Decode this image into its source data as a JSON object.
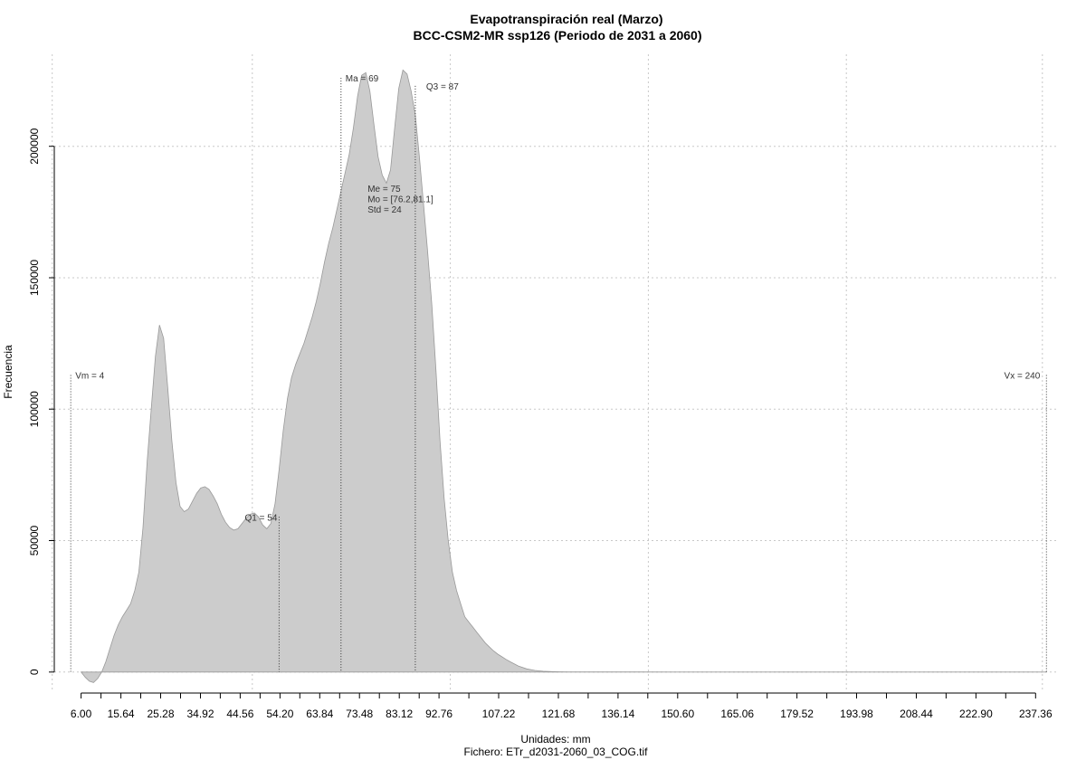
{
  "chart_data": {
    "type": "area",
    "title": "Evapotranspiración real (Marzo)",
    "subtitle": "BCC-CSM2-MR ssp126 (Periodo de 2031 a 2060)",
    "xlabel": "Unidades: mm",
    "ylabel": "Frecuencia",
    "caption": "Fichero: ETr_d2031-2060_03_COG.tif",
    "xlim": [
      -0.5,
      243
    ],
    "ylim": [
      -8000,
      235000
    ],
    "grid": true,
    "fill_color": "#cccccc",
    "line_color": "#999999",
    "x_ticks": [
      {
        "value": 6.0,
        "label": "6.00"
      },
      {
        "value": 15.64,
        "label": "15.64"
      },
      {
        "value": 25.28,
        "label": "25.28"
      },
      {
        "value": 34.92,
        "label": "34.92"
      },
      {
        "value": 44.56,
        "label": "44.56"
      },
      {
        "value": 54.2,
        "label": "54.20"
      },
      {
        "value": 63.84,
        "label": "63.84"
      },
      {
        "value": 73.48,
        "label": "73.48"
      },
      {
        "value": 83.12,
        "label": "83.12"
      },
      {
        "value": 92.76,
        "label": "92.76"
      },
      {
        "value": 107.22,
        "label": "107.22"
      },
      {
        "value": 121.68,
        "label": "121.68"
      },
      {
        "value": 136.14,
        "label": "136.14"
      },
      {
        "value": 150.6,
        "label": "150.60"
      },
      {
        "value": 165.06,
        "label": "165.06"
      },
      {
        "value": 179.52,
        "label": "179.52"
      },
      {
        "value": 193.98,
        "label": "193.98"
      },
      {
        "value": 208.44,
        "label": "208.44"
      },
      {
        "value": 222.9,
        "label": "222.90"
      },
      {
        "value": 237.36,
        "label": "237.36"
      }
    ],
    "x_minor_ticks": [
      10.82,
      20.46,
      30.1,
      39.74,
      49.38,
      59.02,
      68.66,
      78.3,
      87.94,
      99.99,
      114.45,
      128.91,
      143.37,
      157.83,
      172.29,
      186.75,
      201.21,
      215.67,
      230.13
    ],
    "y_ticks": [
      {
        "value": 0,
        "label": "0"
      },
      {
        "value": 50000,
        "label": "50000"
      },
      {
        "value": 100000,
        "label": "100000"
      },
      {
        "value": 150000,
        "label": "150000"
      },
      {
        "value": 200000,
        "label": "200000"
      }
    ],
    "x_gridlines": [
      -1,
      47.5,
      95.5,
      143.5,
      191.5,
      239
    ],
    "y_gridlines": [
      0,
      50000,
      100000,
      150000,
      200000
    ],
    "series": [
      {
        "x": [
          6,
          7,
          8,
          9,
          10,
          11,
          12,
          13,
          14,
          15,
          16,
          17,
          18,
          19,
          20,
          21,
          22,
          23,
          24,
          25,
          26,
          27,
          28,
          29,
          30,
          31,
          32,
          33,
          34,
          35,
          36,
          37,
          38,
          39,
          40,
          41,
          42,
          43,
          44,
          45,
          46,
          47,
          48,
          49,
          50,
          51,
          52,
          53,
          54,
          55,
          56,
          57,
          58,
          59,
          60,
          61,
          62,
          63,
          64,
          65,
          66,
          67,
          68,
          69,
          70,
          71,
          72,
          73,
          74,
          75,
          76,
          77,
          78,
          79,
          80,
          81,
          82,
          83,
          84,
          85,
          86,
          87,
          88,
          89,
          90,
          91,
          92,
          93,
          94,
          95,
          96,
          97,
          98,
          99,
          100,
          101,
          102,
          103,
          104,
          105,
          106,
          107,
          108,
          109,
          110,
          112,
          114,
          116,
          118,
          120,
          122,
          124,
          126,
          128,
          130,
          135,
          140,
          150,
          160,
          180,
          200,
          220,
          240
        ],
        "y": [
          0,
          -2000,
          -3500,
          -4000,
          -2500,
          0,
          4000,
          9000,
          14000,
          18000,
          21000,
          23500,
          26000,
          31000,
          38000,
          55000,
          80000,
          100000,
          120000,
          132000,
          127000,
          108000,
          88000,
          72000,
          63000,
          61000,
          62000,
          65000,
          68000,
          70000,
          70500,
          69500,
          67000,
          64000,
          60000,
          57000,
          55000,
          54000,
          54500,
          56500,
          58500,
          60000,
          60500,
          59000,
          56000,
          54500,
          56500,
          64000,
          77000,
          92000,
          104000,
          112000,
          117000,
          121000,
          125000,
          130000,
          135000,
          141000,
          148000,
          156000,
          163000,
          169000,
          176000,
          183000,
          190000,
          197000,
          207000,
          219000,
          227000,
          228000,
          221000,
          208000,
          196000,
          189000,
          186000,
          191000,
          207000,
          222000,
          229000,
          227500,
          221000,
          212000,
          196000,
          178000,
          160000,
          140000,
          115000,
          88000,
          66000,
          50000,
          38000,
          31000,
          26000,
          21000,
          19000,
          17000,
          15000,
          13000,
          11000,
          9500,
          8000,
          6800,
          5800,
          4800,
          3900,
          2300,
          1200,
          600,
          300,
          150,
          80,
          50,
          30,
          20,
          10,
          5,
          3,
          1,
          0,
          0,
          0,
          0,
          0
        ]
      }
    ],
    "annotations": [
      {
        "label": "Vm = 4",
        "x": 3.5,
        "y_top": 113000,
        "anchor": "start",
        "offset": 5
      },
      {
        "label": "Q1 = 54",
        "x": 54,
        "y_top": 59000,
        "anchor": "end",
        "offset": -2
      },
      {
        "label": "Ma = 69",
        "x": 69,
        "y_top": 226000,
        "anchor": "start",
        "offset": 5
      },
      {
        "label": "Q3 = 87",
        "x": 87,
        "y_top": 223000,
        "anchor": "start",
        "offset": 12
      },
      {
        "label": "Vx = 240",
        "x": 240,
        "y_top": 113000,
        "anchor": "end",
        "offset": -7
      }
    ],
    "stats_block": [
      {
        "label": "Me = 75"
      },
      {
        "label": "Mo = [76.2,81.1]"
      },
      {
        "label": "Std = 24"
      }
    ],
    "stats_anchor": {
      "x": 75,
      "y": 184000
    }
  }
}
